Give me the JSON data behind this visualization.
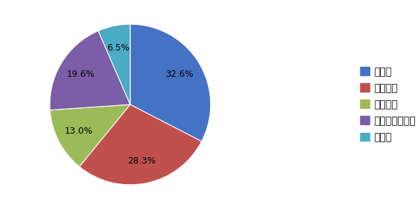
{
  "labels": [
    "大企業",
    "中小企業",
    "教育機関",
    "公的機関・団体",
    "その他"
  ],
  "values": [
    32.6,
    28.3,
    13.0,
    19.6,
    6.5
  ],
  "colors": [
    "#4472C4",
    "#C0504D",
    "#9BBB59",
    "#7B5EA7",
    "#4BACC6"
  ],
  "startangle": 90,
  "figsize": [
    5.9,
    2.94
  ],
  "dpi": 100,
  "pct_fontsize": 9,
  "legend_fontsize": 10
}
